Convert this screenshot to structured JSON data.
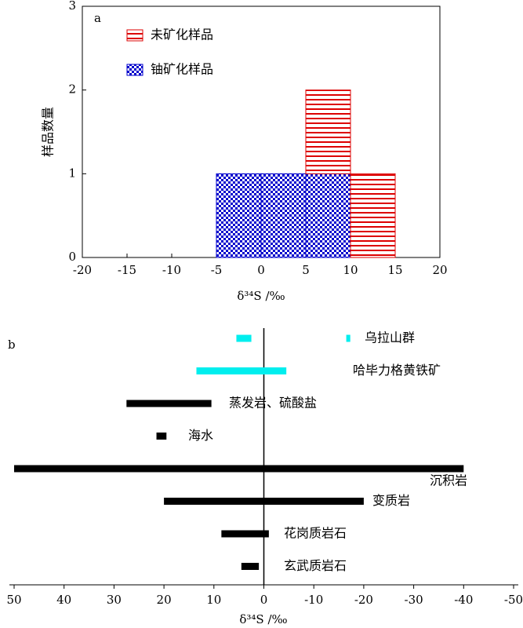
{
  "chart_data": [
    {
      "type": "histogram",
      "panel": "a",
      "xlabel": "δ³⁴S /‰",
      "ylabel": "样品数量",
      "bins": [
        -5,
        0,
        5,
        10,
        15
      ],
      "series": [
        {
          "name": "铀矿化样品",
          "color": "#0000cc",
          "values": [
            1,
            1,
            1,
            0
          ]
        },
        {
          "name": "未矿化样品",
          "color": "#dd0000",
          "values": [
            0,
            0,
            1,
            1
          ]
        }
      ],
      "stacked": true,
      "xlim": [
        -20,
        20
      ],
      "xticks": [
        -20,
        -15,
        -10,
        -5,
        0,
        5,
        10,
        15,
        20
      ],
      "ylim": [
        0,
        3
      ],
      "yticks": [
        0,
        1,
        2,
        3
      ],
      "legend": "upper left"
    },
    {
      "type": "range",
      "panel": "b",
      "xlabel": "δ³⁴S /‰",
      "categories": [
        "乌拉山群",
        null,
        "哈毕力格黄铁矿",
        "蒸发岩、硫酸盐",
        "海水",
        "沉积岩",
        "变质岩",
        "花岗质岩石",
        "玄武质岩石"
      ],
      "values": [
        [
          5.5,
          2.5
        ],
        [
          -16.5,
          -17.3
        ],
        [
          13.5,
          -4.5
        ],
        [
          27.5,
          10.5
        ],
        [
          21.5,
          19.5
        ],
        [
          50,
          -40
        ],
        [
          20,
          -20
        ],
        [
          8.5,
          -1
        ],
        [
          4.5,
          1
        ]
      ],
      "colors": [
        "#00eeee",
        "#00eeee",
        "#00eeee",
        "#000000",
        "#000000",
        "#000000",
        "#000000",
        "#000000",
        "#000000"
      ],
      "xlim": [
        50,
        -50
      ],
      "xticks": [
        50,
        40,
        30,
        20,
        10,
        0,
        -10,
        -20,
        -30,
        -40,
        -50
      ]
    }
  ]
}
